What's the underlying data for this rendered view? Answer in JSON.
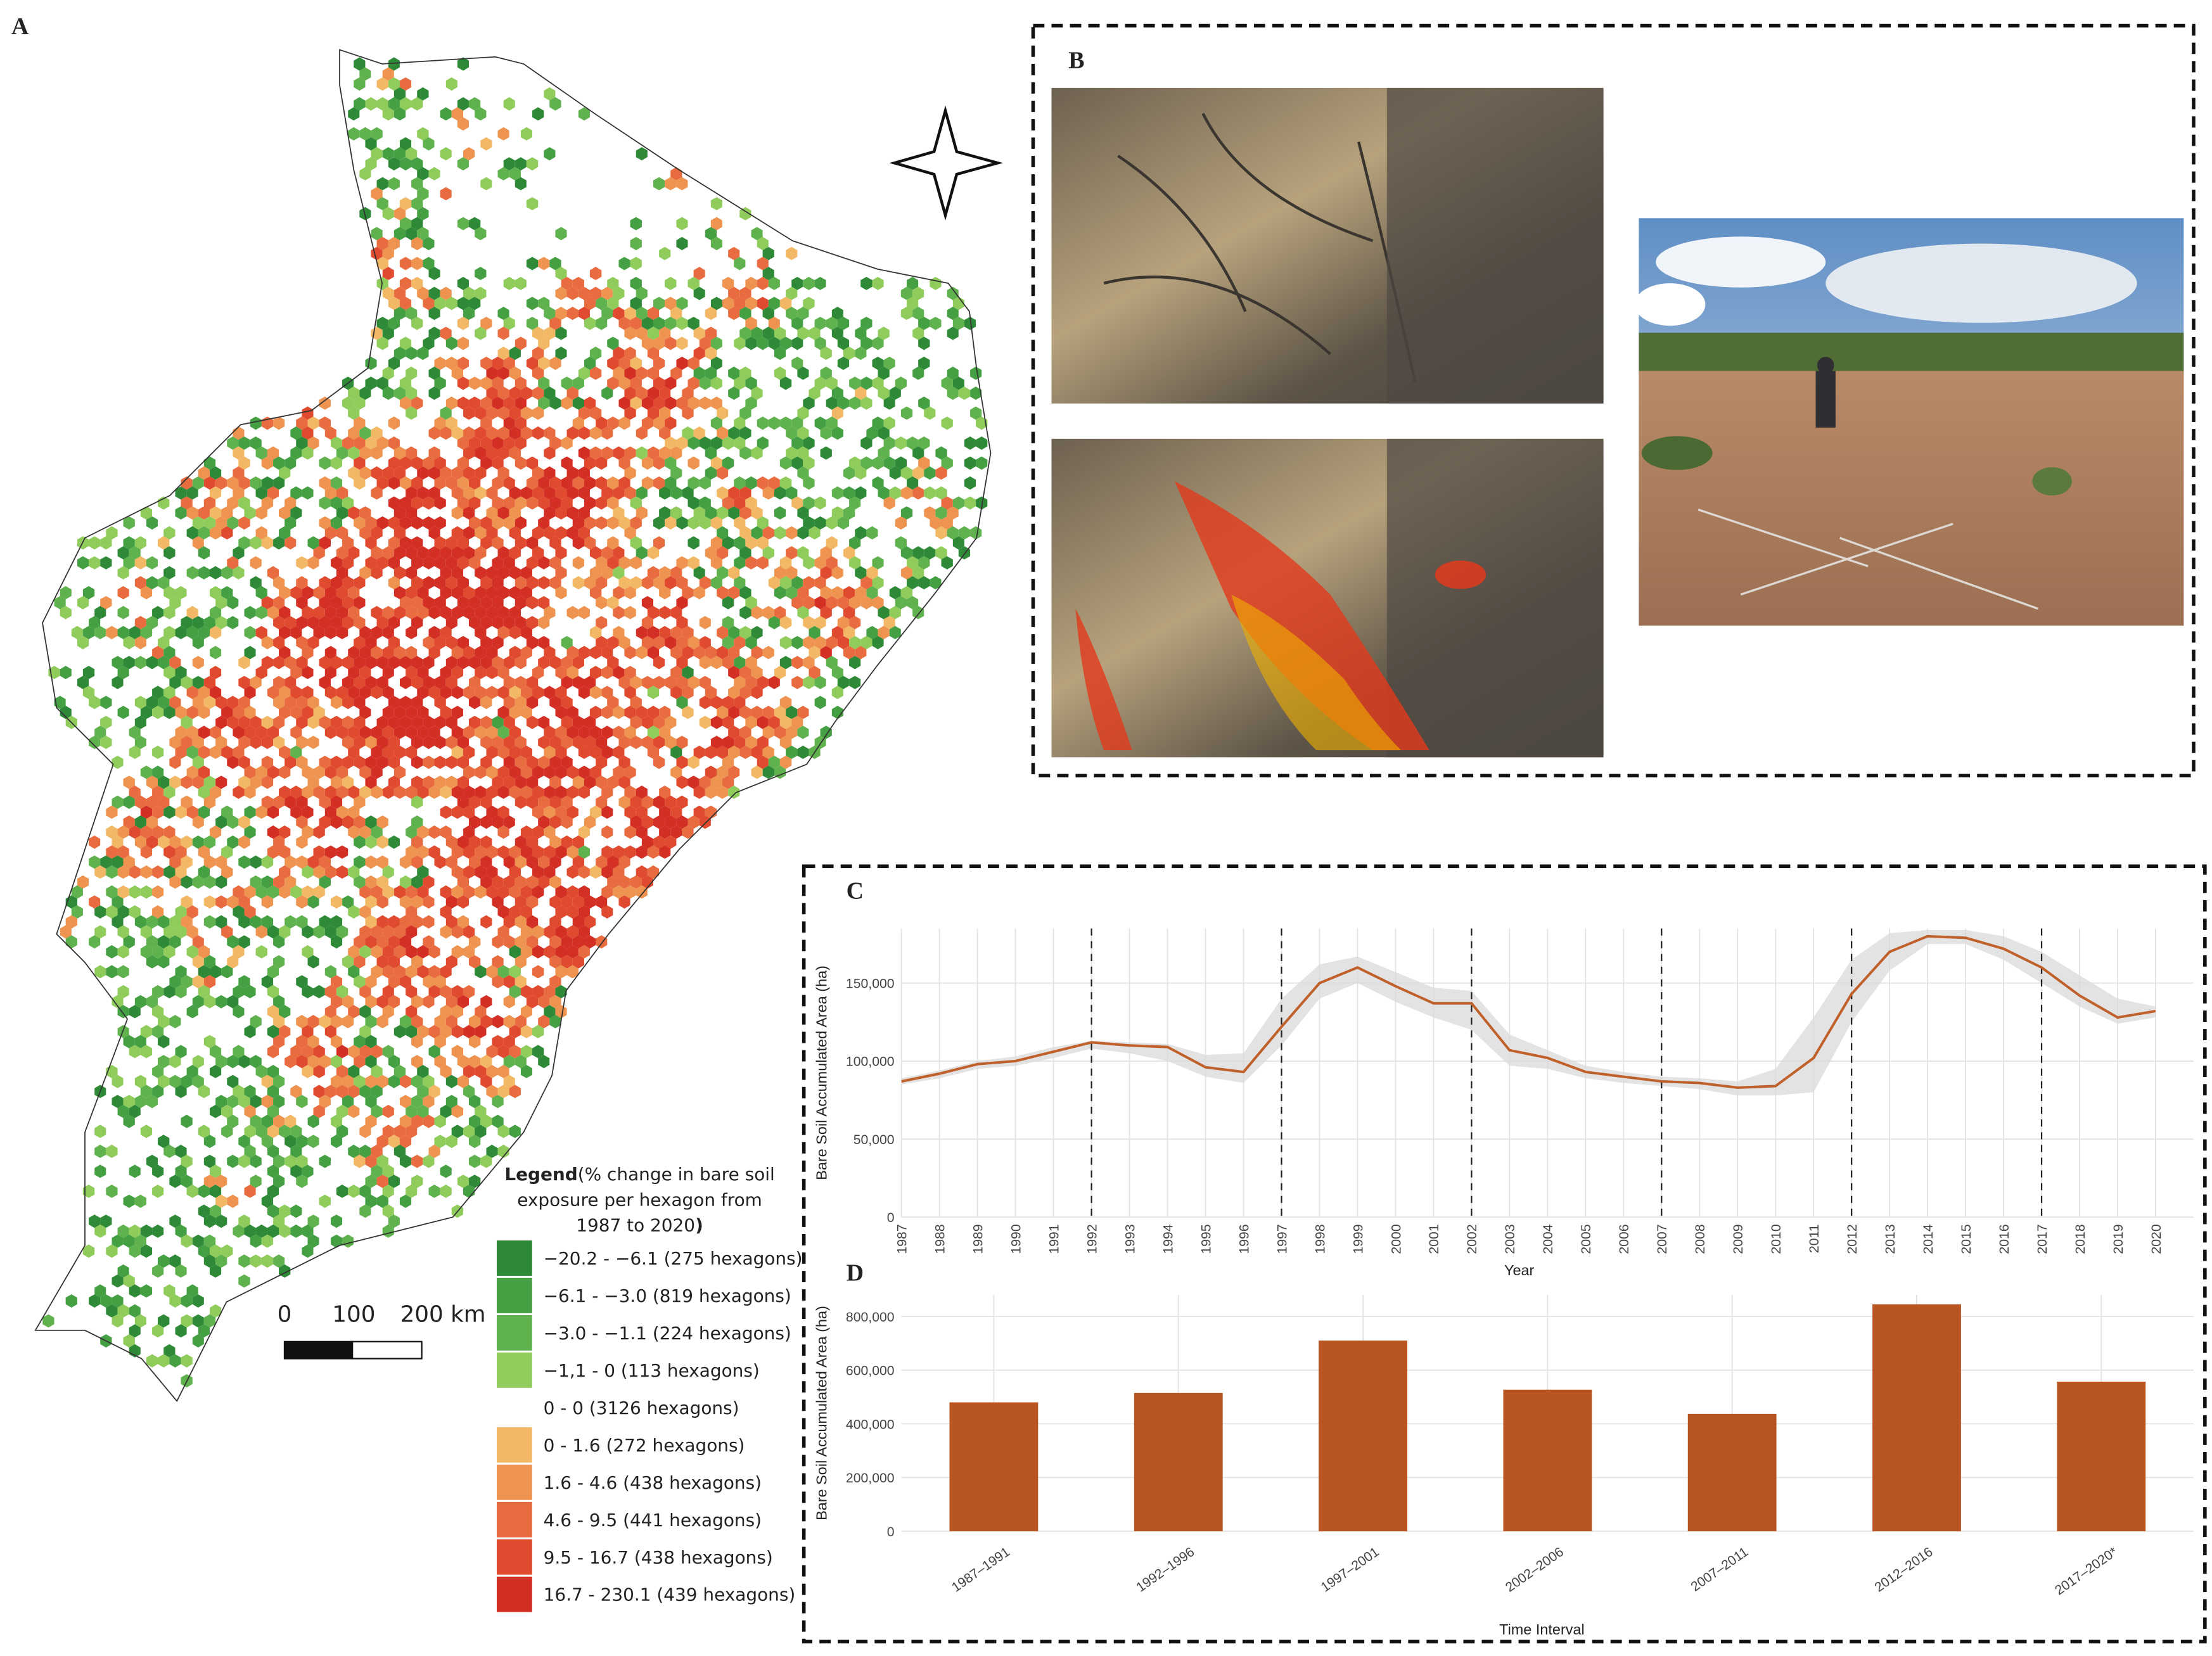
{
  "panel_labels": [
    "A",
    "B",
    "C",
    "D"
  ],
  "map": {
    "scale_labels": [
      "0",
      "100",
      "200 km"
    ],
    "legend_title": [
      "Legend",
      "(% change in bare soil",
      "exposure per hexagon from",
      "1987 to 2020",
      ")"
    ],
    "legend_items": [
      {
        "label": "−20.2 - −6.1 (275 hexagons)",
        "color": "#2f8a38"
      },
      {
        "label": "−6.1 - −3.0 (819 hexagons)",
        "color": "#45a043"
      },
      {
        "label": "−3.0 - −1.1 (224 hexagons)",
        "color": "#60b24e"
      },
      {
        "label": "−1,1 - 0 (113 hexagons)",
        "color": "#90cc5c"
      },
      {
        "label": "0 - 0 (3126 hexagons)",
        "color": "#ffffff"
      },
      {
        "label": "0 - 1.6 (272 hexagons)",
        "color": "#f3b866"
      },
      {
        "label": "1.6 - 4.6 (438 hexagons)",
        "color": "#ee9350"
      },
      {
        "label": "4.6 - 9.5 (441 hexagons)",
        "color": "#e86c3f"
      },
      {
        "label": "9.5 - 16.7 (438 hexagons)",
        "color": "#e04b30"
      },
      {
        "label": "16.7 - 230.1 (439 hexagons)",
        "color": "#d42f25"
      }
    ]
  },
  "chart_data": [
    {
      "type": "line",
      "x_label": "Year",
      "y_label": "Bare Soil Accumulated Area (ha)",
      "x": [
        1987,
        1988,
        1989,
        1990,
        1991,
        1992,
        1993,
        1994,
        1995,
        1996,
        1997,
        1998,
        1999,
        2000,
        2001,
        2002,
        2003,
        2004,
        2005,
        2006,
        2007,
        2008,
        2009,
        2010,
        2011,
        2012,
        2013,
        2014,
        2015,
        2016,
        2017,
        2018,
        2019,
        2020
      ],
      "values": [
        87000,
        92000,
        98000,
        100000,
        106000,
        112000,
        110000,
        109000,
        96000,
        93000,
        122000,
        150000,
        160000,
        148000,
        137000,
        137000,
        107000,
        102000,
        93000,
        90000,
        87000,
        86000,
        83000,
        84000,
        102000,
        143000,
        170000,
        180000,
        179000,
        172000,
        160000,
        142000,
        128000,
        132000
      ],
      "band_upper": [
        89000,
        94000,
        100000,
        103000,
        109000,
        113000,
        112000,
        111000,
        104000,
        105000,
        140000,
        162000,
        167000,
        157000,
        147000,
        145000,
        117000,
        107000,
        97000,
        93000,
        90000,
        89000,
        87000,
        95000,
        128000,
        165000,
        182000,
        184000,
        184000,
        180000,
        170000,
        155000,
        140000,
        135000
      ],
      "band_lower": [
        85000,
        89000,
        95000,
        97000,
        102000,
        108000,
        105000,
        100000,
        90000,
        86000,
        110000,
        140000,
        150000,
        138000,
        128000,
        120000,
        97000,
        95000,
        89000,
        86000,
        84000,
        82000,
        78000,
        78000,
        80000,
        125000,
        158000,
        175000,
        175000,
        165000,
        150000,
        135000,
        124000,
        128000
      ],
      "color": "#c0602b",
      "band_color": "#d9d9d9",
      "vlines": [
        1992,
        1997,
        2002,
        2007,
        2012,
        2017
      ],
      "xlim": [
        1987,
        2021
      ],
      "xticks": [
        1987,
        1988,
        1989,
        1990,
        1991,
        1992,
        1993,
        1994,
        1995,
        1996,
        1997,
        1998,
        1999,
        2000,
        2001,
        2002,
        2003,
        2004,
        2005,
        2006,
        2007,
        2008,
        2009,
        2010,
        2011,
        2012,
        2013,
        2014,
        2015,
        2016,
        2017,
        2018,
        2019,
        2020
      ],
      "ylim": [
        0,
        185000
      ],
      "yticks": [
        0,
        {
          "value": 50000,
          "label": "50,000"
        },
        {
          "value": 100000,
          "label": "100,000"
        },
        {
          "value": 150000,
          "label": "150,000"
        }
      ],
      "grid": true
    },
    {
      "type": "bar",
      "x_label": "Time Interval",
      "y_label": "Bare Soil Accumulated Area (ha)",
      "categories": [
        "1987–1991",
        "1992–1996",
        "1997–2001",
        "2002–2006",
        "2007–2011",
        "2012–2016",
        "2017–2020*"
      ],
      "values": [
        480000,
        515000,
        710000,
        527000,
        437000,
        845000,
        557000
      ],
      "color": "#b85520",
      "ylim": [
        0,
        880000
      ],
      "yticks": [
        0,
        {
          "value": 200000,
          "label": "200,000"
        },
        {
          "value": 400000,
          "label": "400,000"
        },
        {
          "value": 600000,
          "label": "600,000"
        },
        {
          "value": 800000,
          "label": "800,000"
        }
      ],
      "grid": true
    }
  ]
}
